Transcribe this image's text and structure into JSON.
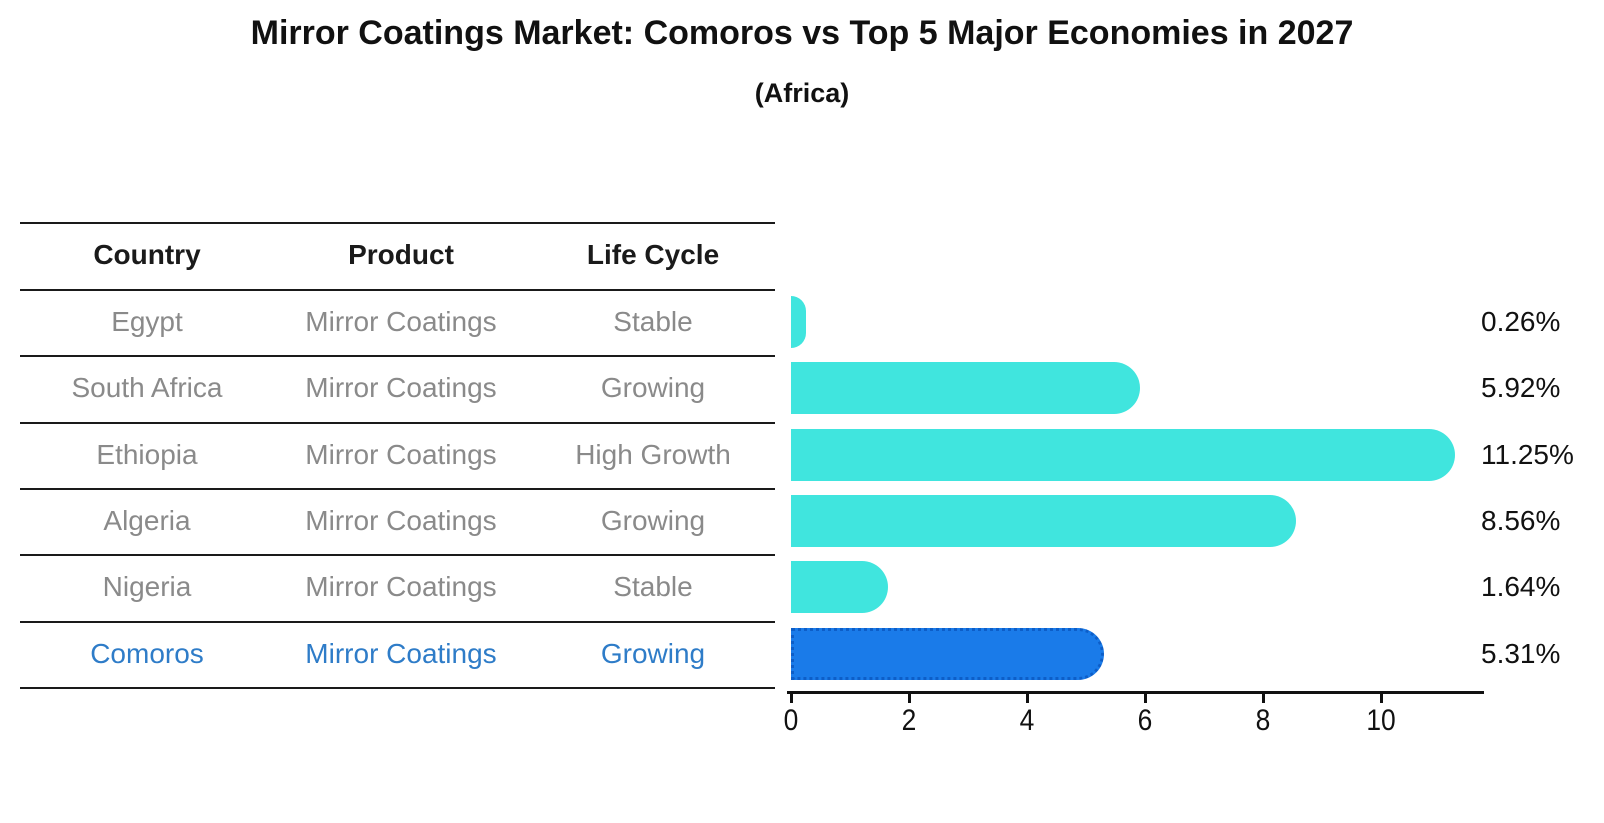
{
  "title": "Mirror Coatings Market: Comoros vs Top 5 Major Economies in 2027",
  "subtitle": "(Africa)",
  "colors": {
    "bar_default": "#40e5de",
    "bar_highlight_fill": "#1a7be9",
    "bar_highlight_border": "#0d5ec8",
    "table_text": "#8a8a8a",
    "table_text_highlight": "#2e7cc8",
    "axis_text": "#111111",
    "line": "#1a1a1a"
  },
  "table": {
    "columns": [
      "Country",
      "Product",
      "Life Cycle"
    ],
    "rows": [
      {
        "country": "Egypt",
        "product": "Mirror Coatings",
        "life_cycle": "Stable",
        "highlighted": false
      },
      {
        "country": "South Africa",
        "product": "Mirror Coatings",
        "life_cycle": "Growing",
        "highlighted": false
      },
      {
        "country": "Ethiopia",
        "product": "Mirror Coatings",
        "life_cycle": "High Growth",
        "highlighted": false
      },
      {
        "country": "Algeria",
        "product": "Mirror Coatings",
        "life_cycle": "Growing",
        "highlighted": false
      },
      {
        "country": "Nigeria",
        "product": "Mirror Coatings",
        "life_cycle": "Stable",
        "highlighted": false
      },
      {
        "country": "Comoros",
        "product": "Mirror Coatings",
        "life_cycle": "Growing",
        "highlighted": true
      }
    ]
  },
  "chart_data": {
    "type": "bar",
    "orientation": "horizontal",
    "title": "Mirror Coatings Market: Comoros vs Top 5 Major Economies in 2027",
    "subtitle": "(Africa)",
    "categories": [
      "Egypt",
      "South Africa",
      "Ethiopia",
      "Algeria",
      "Nigeria",
      "Comoros"
    ],
    "values": [
      0.26,
      5.92,
      11.25,
      8.56,
      1.64,
      5.31
    ],
    "bar_labels": [
      "0.26%",
      "5.92%",
      "11.25%",
      "8.56%",
      "1.64%",
      "5.31%"
    ],
    "highlight_index": 5,
    "xlabel": "",
    "ylabel": "",
    "xlim": [
      0,
      11.8
    ],
    "xticks": [
      0,
      2,
      4,
      6,
      8,
      10
    ],
    "grid": false,
    "legend": null
  }
}
